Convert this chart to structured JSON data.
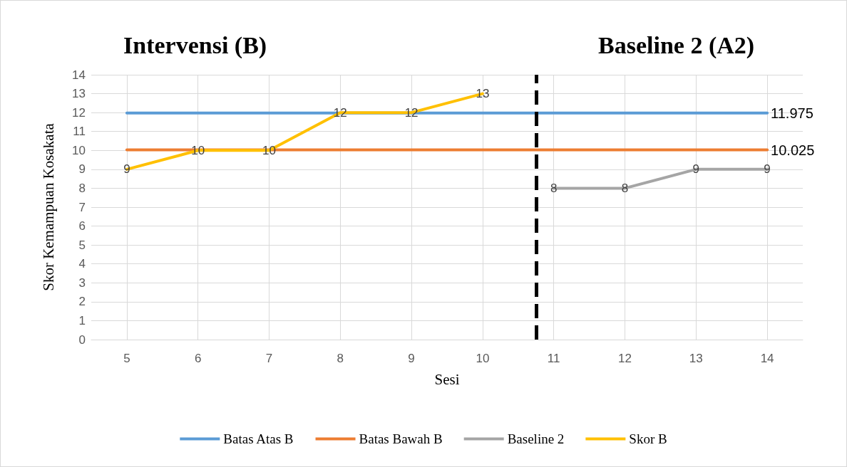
{
  "chart_data": {
    "type": "line",
    "xlabel": "Sesi",
    "ylabel": "Skor Kemampuan Kosakata",
    "annotations": [
      "Intervensi (B)",
      "Baseline 2 (A2)"
    ],
    "x": [
      5,
      6,
      7,
      8,
      9,
      10,
      11,
      12,
      13,
      14
    ],
    "xlim": [
      4.5,
      14.5
    ],
    "xticks": [
      5,
      6,
      7,
      8,
      9,
      10,
      11,
      12,
      13,
      14
    ],
    "ylim": [
      0,
      14
    ],
    "yticks": [
      0,
      1,
      2,
      3,
      4,
      5,
      6,
      7,
      8,
      9,
      10,
      11,
      12,
      13,
      14
    ],
    "series": [
      {
        "name": "Batas Atas B",
        "color": "#5b9bd5",
        "values": [
          11.975,
          11.975,
          11.975,
          11.975,
          11.975,
          11.975,
          11.975,
          11.975,
          11.975,
          11.975
        ],
        "value_labels": [
          null,
          null,
          null,
          null,
          null,
          null,
          null,
          null,
          null,
          "11.975"
        ]
      },
      {
        "name": "Batas Bawah B",
        "color": "#ed7d31",
        "values": [
          10.025,
          10.025,
          10.025,
          10.025,
          10.025,
          10.025,
          10.025,
          10.025,
          10.025,
          10.025
        ],
        "value_labels": [
          null,
          null,
          null,
          null,
          null,
          null,
          null,
          null,
          null,
          "10.025"
        ]
      },
      {
        "name": "Baseline 2",
        "color": "#a5a5a5",
        "values": [
          null,
          null,
          null,
          null,
          null,
          null,
          8,
          8,
          9,
          9
        ],
        "value_labels": [
          null,
          null,
          null,
          null,
          null,
          null,
          "8",
          "8",
          "9",
          "9"
        ]
      },
      {
        "name": "Skor B",
        "color": "#ffc000",
        "values": [
          9,
          10,
          10,
          12,
          12,
          13,
          null,
          null,
          null,
          null
        ],
        "value_labels": [
          "9",
          "10",
          "10",
          "12",
          "12",
          "13",
          null,
          null,
          null,
          null
        ]
      }
    ],
    "ref_lines": [
      {
        "axis": "x",
        "value": 10.75,
        "color": "#000000",
        "line_style": "dashed"
      }
    ],
    "grid": true,
    "legend": "bottom",
    "marker": "none",
    "line_style": "solid"
  }
}
